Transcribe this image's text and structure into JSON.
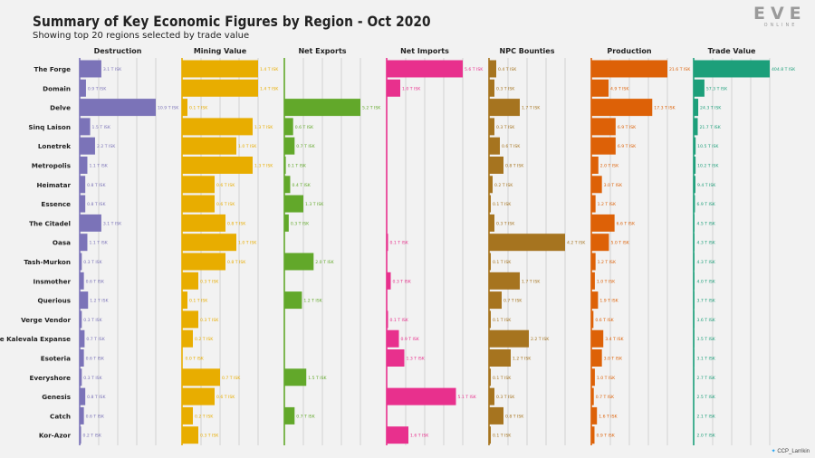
{
  "title": "Summary of Key Economic Figures by Region - Oct 2020",
  "subtitle": "Showing top 20 regions selected by trade value",
  "logo": {
    "main": "EVE",
    "sub": "ONLINE"
  },
  "credit": {
    "icon": "twitter-icon",
    "handle": "CCP_Larrikin"
  },
  "chart_data": {
    "type": "bar",
    "orientation": "horizontal",
    "categories": [
      "The Forge",
      "Domain",
      "Delve",
      "Sinq Laison",
      "Lonetrek",
      "Metropolis",
      "Heimatar",
      "Essence",
      "The Citadel",
      "Oasa",
      "Tash-Murkon",
      "Insmother",
      "Querious",
      "Verge Vendor",
      "The Kalevala Expanse",
      "Esoteria",
      "Everyshore",
      "Genesis",
      "Catch",
      "Kor-Azor"
    ],
    "panels": [
      {
        "name": "Destruction",
        "color": "#7b73b8",
        "values": [
          3.1,
          0.9,
          10.9,
          1.5,
          2.2,
          1.1,
          0.8,
          0.8,
          3.1,
          1.1,
          0.3,
          0.6,
          1.2,
          0.3,
          0.7,
          0.6,
          0.3,
          0.8,
          0.6,
          0.2
        ],
        "labels": [
          "3.1 T ISK",
          "0.9 T ISK",
          "10.9 T ISK",
          "1.5 T ISK",
          "2.2 T ISK",
          "1.1 T ISK",
          "0.8 T ISK",
          "0.8 T ISK",
          "3.1 T ISK",
          "1.1 T ISK",
          "0.3 T ISK",
          "0.6 T ISK",
          "1.2 T ISK",
          "0.3 T ISK",
          "0.7 T ISK",
          "0.6 T ISK",
          "0.3 T ISK",
          "0.8 T ISK",
          "0.6 T ISK",
          "0.2 T ISK"
        ]
      },
      {
        "name": "Mining Value",
        "color": "#e8ad00",
        "values": [
          1.4,
          1.4,
          0.1,
          1.3,
          1.0,
          1.3,
          0.6,
          0.6,
          0.8,
          1.0,
          0.8,
          0.3,
          0.1,
          0.3,
          0.2,
          0.0,
          0.7,
          0.6,
          0.2,
          0.3
        ],
        "labels": [
          "1.4 T ISK",
          "1.4 T ISK",
          "0.1 T ISK",
          "1.3 T ISK",
          "1.0 T ISK",
          "1.3 T ISK",
          "0.6 T ISK",
          "0.6 T ISK",
          "0.8 T ISK",
          "1.0 T ISK",
          "0.8 T ISK",
          "0.3 T ISK",
          "0.1 T ISK",
          "0.3 T ISK",
          "0.2 T ISK",
          "0.0 T ISK",
          "0.7 T ISK",
          "0.6 T ISK",
          "0.2 T ISK",
          "0.3 T ISK"
        ]
      },
      {
        "name": "Net Exports",
        "color": "#62a82a",
        "values": [
          0.0,
          0.0,
          5.2,
          0.6,
          0.7,
          0.1,
          0.4,
          1.3,
          0.3,
          0.0,
          2.0,
          0.0,
          1.2,
          0.0,
          0.0,
          0.0,
          1.5,
          0.0,
          0.7,
          0.0
        ],
        "labels": [
          "",
          "",
          "5.2 T ISK",
          "0.6 T ISK",
          "0.7 T ISK",
          "0.1 T ISK",
          "0.4 T ISK",
          "1.3 T ISK",
          "0.3 T ISK",
          "",
          "2.0 T ISK",
          "",
          "1.2 T ISK",
          "",
          "",
          "",
          "1.5 T ISK",
          "",
          "0.7 T ISK",
          ""
        ]
      },
      {
        "name": "Net Imports",
        "color": "#e8308d",
        "values": [
          5.6,
          1.0,
          0.0,
          0.0,
          0.0,
          0.0,
          0.0,
          0.0,
          0.0,
          0.1,
          0.0,
          0.3,
          0.0,
          0.1,
          0.9,
          1.3,
          0.0,
          5.1,
          0.0,
          1.6
        ],
        "labels": [
          "5.6 T ISK",
          "1.0 T ISK",
          "",
          "",
          "",
          "",
          "",
          "",
          "",
          "0.1 T ISK",
          "",
          "0.3 T ISK",
          "",
          "0.1 T ISK",
          "0.9 T ISK",
          "1.3 T ISK",
          "",
          "5.1 T ISK",
          "",
          "1.6 T ISK"
        ]
      },
      {
        "name": "NPC Bounties",
        "color": "#a6741f",
        "values": [
          0.4,
          0.3,
          1.7,
          0.3,
          0.6,
          0.8,
          0.2,
          0.1,
          0.3,
          4.2,
          0.1,
          1.7,
          0.7,
          0.1,
          2.2,
          1.2,
          0.1,
          0.3,
          0.8,
          0.1
        ],
        "labels": [
          "0.4 T ISK",
          "0.3 T ISK",
          "1.7 T ISK",
          "0.3 T ISK",
          "0.6 T ISK",
          "0.8 T ISK",
          "0.2 T ISK",
          "0.1 T ISK",
          "0.3 T ISK",
          "4.2 T ISK",
          "0.1 T ISK",
          "1.7 T ISK",
          "0.7 T ISK",
          "0.1 T ISK",
          "2.2 T ISK",
          "1.2 T ISK",
          "0.1 T ISK",
          "0.3 T ISK",
          "0.8 T ISK",
          "0.1 T ISK"
        ]
      },
      {
        "name": "Production",
        "color": "#dd6107",
        "values": [
          21.6,
          4.9,
          17.3,
          6.9,
          6.9,
          2.0,
          3.0,
          1.2,
          6.6,
          5.0,
          1.2,
          1.0,
          1.9,
          0.6,
          3.4,
          3.0,
          1.0,
          0.7,
          1.6,
          0.9
        ],
        "labels": [
          "21.6 T ISK",
          "4.9 T ISK",
          "17.3 T ISK",
          "6.9 T ISK",
          "6.9 T ISK",
          "2.0 T ISK",
          "3.0 T ISK",
          "1.2 T ISK",
          "6.6 T ISK",
          "5.0 T ISK",
          "1.2 T ISK",
          "1.0 T ISK",
          "1.9 T ISK",
          "0.6 T ISK",
          "3.4 T ISK",
          "3.0 T ISK",
          "1.0 T ISK",
          "0.7 T ISK",
          "1.6 T ISK",
          "0.9 T ISK"
        ]
      },
      {
        "name": "Trade Value",
        "color": "#1c9f7a",
        "values": [
          404.8,
          57.3,
          24.3,
          21.7,
          10.5,
          10.2,
          9.4,
          6.9,
          4.5,
          4.3,
          4.3,
          4.0,
          3.7,
          3.6,
          3.5,
          3.1,
          2.7,
          2.5,
          2.1,
          2.0
        ],
        "labels": [
          "404.8 T ISK",
          "57.3 T ISK",
          "24.3 T ISK",
          "21.7 T ISK",
          "10.5 T ISK",
          "10.2 T ISK",
          "9.4 T ISK",
          "6.9 T ISK",
          "4.5 T ISK",
          "4.3 T ISK",
          "4.3 T ISK",
          "4.0 T ISK",
          "3.7 T ISK",
          "3.6 T ISK",
          "3.5 T ISK",
          "3.1 T ISK",
          "2.7 T ISK",
          "2.5 T ISK",
          "2.1 T ISK",
          "2.0 T ISK"
        ]
      }
    ],
    "xlim_per_panel": "independent",
    "grid": true,
    "legend": "none"
  }
}
